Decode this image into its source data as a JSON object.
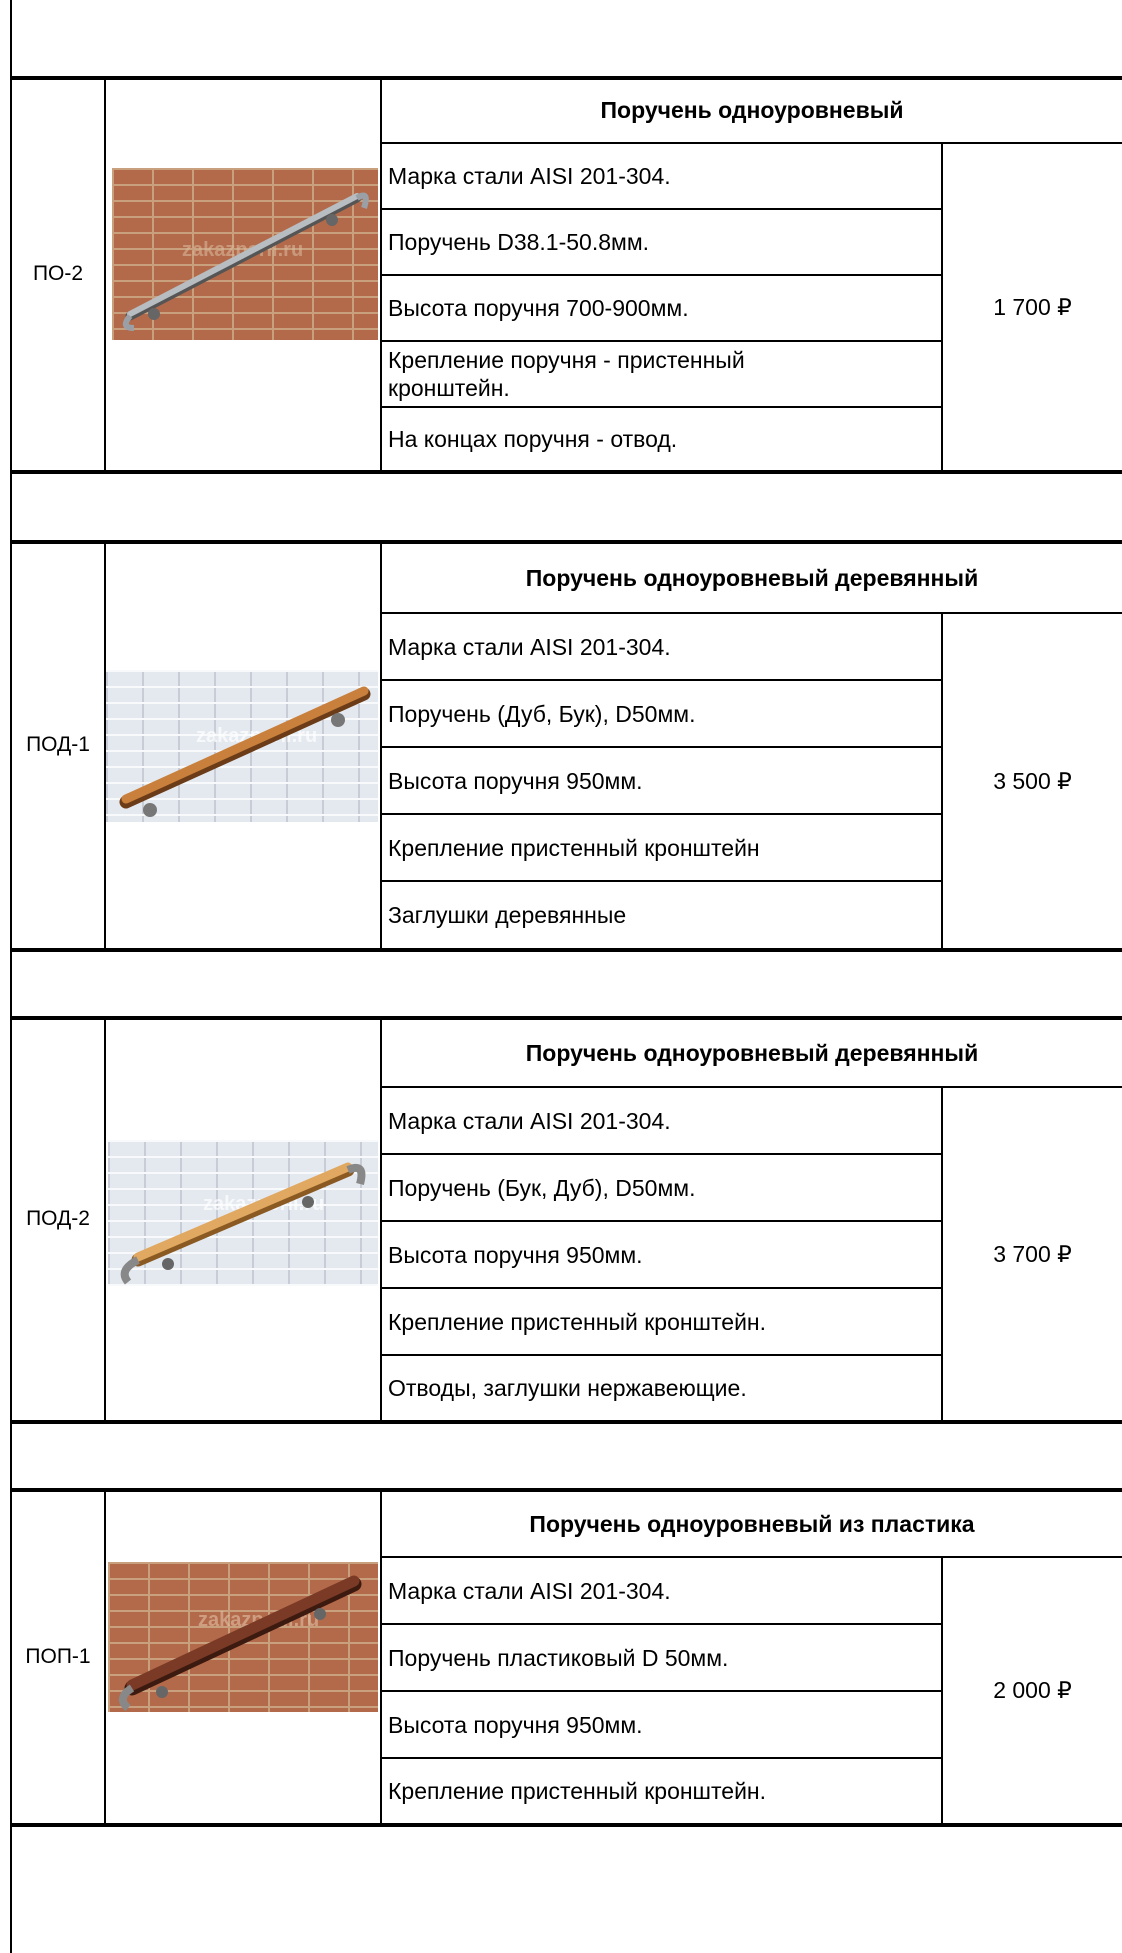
{
  "products": [
    {
      "code": "ПО-2",
      "title": "Поручень одноуровневый",
      "specs": [
        "Марка стали AISI 201-304.",
        "Поручень D38.1-50.8мм.",
        "Высота поручня 700-900мм.",
        "Крепление поручня - пристенный кронштейн.",
        "На концах поручня - отвод."
      ],
      "price": "1 700 ₽",
      "watermark": "zakazperil.ru"
    },
    {
      "code": "ПОД-1",
      "title": "Поручень одноуровневый деревянный",
      "specs": [
        "Марка стали AISI 201-304.",
        "Поручень (Дуб, Бук), D50мм.",
        "Высота поручня 950мм.",
        "Крепление пристенный кронштейн",
        "Заглушки деревянные"
      ],
      "price": "3 500 ₽",
      "watermark": "zakazperil.ru"
    },
    {
      "code": "ПОД-2",
      "title": "Поручень одноуровневый деревянный",
      "specs": [
        "Марка стали AISI 201-304.",
        "Поручень (Бук, Дуб), D50мм.",
        "Высота поручня 950мм.",
        "Крепление пристенный кронштейн.",
        "Отводы, заглушки нержавеющие."
      ],
      "price": "3 700 ₽",
      "watermark": "zakazperil.ru"
    },
    {
      "code": "ПОП-1",
      "title": "Поручень одноуровневый из пластика",
      "specs": [
        "Марка стали AISI 201-304.",
        "Поручень пластиковый D 50мм.",
        "Высота поручня 950мм.",
        "Крепление пристенный кронштейн."
      ],
      "price": "2 000 ₽",
      "watermark": "zakazperil.ru"
    }
  ],
  "colors": {
    "rail_steel": "#9aa0a6",
    "rail_wood": "#c8803c",
    "rail_plastic": "#7a3a26"
  }
}
